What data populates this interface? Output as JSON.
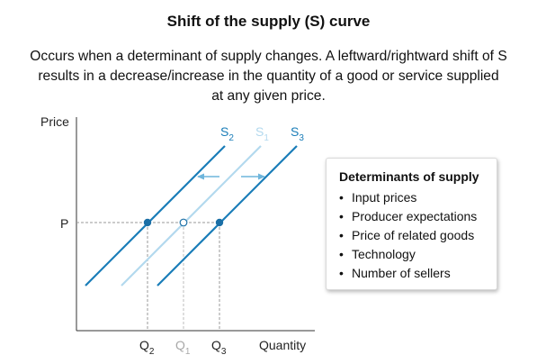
{
  "title": "Shift of the supply (S) curve",
  "subtitle_lines": [
    "Occurs when a determinant of supply changes. A leftward/rightward shift of S",
    "results in a decrease/increase in the quantity of a good or service supplied",
    "at any given price."
  ],
  "graph": {
    "y_axis_label": "Price",
    "x_axis_label": "Quantity",
    "price_label": "P",
    "curves": [
      {
        "label": "S",
        "subscript": "2",
        "color": "#1a7db8"
      },
      {
        "label": "S",
        "subscript": "1",
        "color": "#b3d9ee"
      },
      {
        "label": "S",
        "subscript": "3",
        "color": "#1a7db8"
      }
    ],
    "quantities": [
      {
        "label": "Q",
        "subscript": "2",
        "color": "#222222"
      },
      {
        "label": "Q",
        "subscript": "1",
        "color": "#a8a8a8"
      },
      {
        "label": "Q",
        "subscript": "3",
        "color": "#222222"
      }
    ],
    "arrow_color": "#6fb6dc",
    "point_color": "#1a6fa6"
  },
  "panel": {
    "title": "Determinants of supply",
    "items": [
      "Input prices",
      "Producer expectations",
      "Price of related goods",
      "Technology",
      "Number of sellers"
    ]
  }
}
